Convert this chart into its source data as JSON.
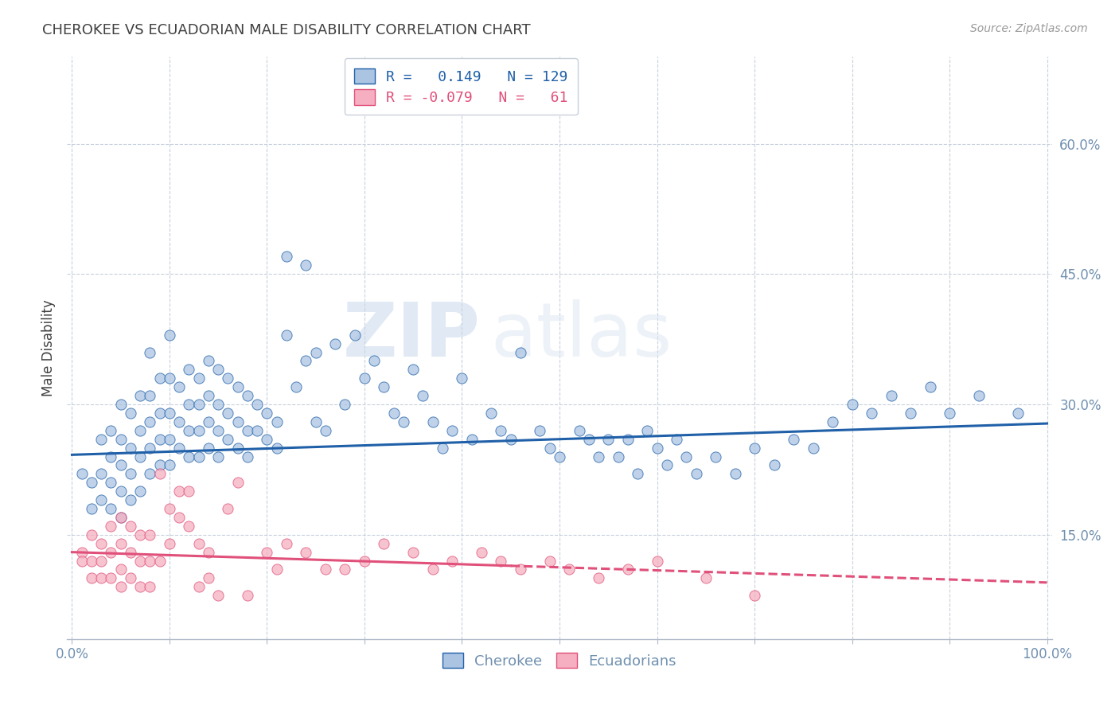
{
  "title": "CHEROKEE VS ECUADORIAN MALE DISABILITY CORRELATION CHART",
  "source": "Source: ZipAtlas.com",
  "ylabel": "Male Disability",
  "ytick_labels": [
    "15.0%",
    "30.0%",
    "45.0%",
    "60.0%"
  ],
  "ytick_values": [
    0.15,
    0.3,
    0.45,
    0.6
  ],
  "xtick_values": [
    0.0,
    0.1,
    0.2,
    0.3,
    0.4,
    0.5,
    0.6,
    0.7,
    0.8,
    0.9,
    1.0
  ],
  "xlim": [
    -0.005,
    1.005
  ],
  "ylim": [
    0.03,
    0.7
  ],
  "cherokee_R": 0.149,
  "cherokee_N": 129,
  "ecuadorian_R": -0.079,
  "ecuadorian_N": 61,
  "cherokee_color": "#aac4e2",
  "cherokee_line_color": "#2060a8",
  "ecuadorian_color": "#f5afc0",
  "ecuadorian_line_color": "#e0507a",
  "legend_label_cherokee": "Cherokee",
  "legend_label_ecuadorian": "Ecuadorians",
  "background_color": "#ffffff",
  "watermark_zip": "ZIP",
  "watermark_atlas": "atlas",
  "title_color": "#404040",
  "axis_color": "#7090b0",
  "cherokee_trend_x0": 0.0,
  "cherokee_trend_x1": 1.0,
  "cherokee_trend_y0": 0.242,
  "cherokee_trend_y1": 0.278,
  "ecuadorian_trend_x0": 0.0,
  "ecuadorian_trend_x1": 1.0,
  "ecuadorian_trend_y0": 0.13,
  "ecuadorian_trend_y1": 0.095,
  "cherokee_scatter_x": [
    0.01,
    0.02,
    0.02,
    0.03,
    0.03,
    0.03,
    0.04,
    0.04,
    0.04,
    0.04,
    0.05,
    0.05,
    0.05,
    0.05,
    0.05,
    0.06,
    0.06,
    0.06,
    0.06,
    0.07,
    0.07,
    0.07,
    0.07,
    0.08,
    0.08,
    0.08,
    0.08,
    0.08,
    0.09,
    0.09,
    0.09,
    0.09,
    0.1,
    0.1,
    0.1,
    0.1,
    0.1,
    0.11,
    0.11,
    0.11,
    0.12,
    0.12,
    0.12,
    0.12,
    0.13,
    0.13,
    0.13,
    0.13,
    0.14,
    0.14,
    0.14,
    0.14,
    0.15,
    0.15,
    0.15,
    0.15,
    0.16,
    0.16,
    0.16,
    0.17,
    0.17,
    0.17,
    0.18,
    0.18,
    0.18,
    0.19,
    0.19,
    0.2,
    0.2,
    0.21,
    0.21,
    0.22,
    0.22,
    0.23,
    0.24,
    0.24,
    0.25,
    0.25,
    0.26,
    0.27,
    0.28,
    0.29,
    0.3,
    0.31,
    0.32,
    0.33,
    0.34,
    0.35,
    0.36,
    0.37,
    0.38,
    0.39,
    0.4,
    0.41,
    0.43,
    0.44,
    0.45,
    0.46,
    0.48,
    0.49,
    0.5,
    0.52,
    0.53,
    0.54,
    0.55,
    0.56,
    0.57,
    0.58,
    0.59,
    0.6,
    0.61,
    0.62,
    0.63,
    0.64,
    0.66,
    0.68,
    0.7,
    0.72,
    0.74,
    0.76,
    0.78,
    0.8,
    0.82,
    0.84,
    0.86,
    0.88,
    0.9,
    0.93,
    0.97
  ],
  "cherokee_scatter_y": [
    0.22,
    0.21,
    0.18,
    0.26,
    0.22,
    0.19,
    0.27,
    0.24,
    0.21,
    0.18,
    0.3,
    0.26,
    0.23,
    0.2,
    0.17,
    0.29,
    0.25,
    0.22,
    0.19,
    0.31,
    0.27,
    0.24,
    0.2,
    0.36,
    0.31,
    0.28,
    0.25,
    0.22,
    0.33,
    0.29,
    0.26,
    0.23,
    0.38,
    0.33,
    0.29,
    0.26,
    0.23,
    0.32,
    0.28,
    0.25,
    0.34,
    0.3,
    0.27,
    0.24,
    0.33,
    0.3,
    0.27,
    0.24,
    0.35,
    0.31,
    0.28,
    0.25,
    0.34,
    0.3,
    0.27,
    0.24,
    0.33,
    0.29,
    0.26,
    0.32,
    0.28,
    0.25,
    0.31,
    0.27,
    0.24,
    0.3,
    0.27,
    0.29,
    0.26,
    0.28,
    0.25,
    0.47,
    0.38,
    0.32,
    0.46,
    0.35,
    0.36,
    0.28,
    0.27,
    0.37,
    0.3,
    0.38,
    0.33,
    0.35,
    0.32,
    0.29,
    0.28,
    0.34,
    0.31,
    0.28,
    0.25,
    0.27,
    0.33,
    0.26,
    0.29,
    0.27,
    0.26,
    0.36,
    0.27,
    0.25,
    0.24,
    0.27,
    0.26,
    0.24,
    0.26,
    0.24,
    0.26,
    0.22,
    0.27,
    0.25,
    0.23,
    0.26,
    0.24,
    0.22,
    0.24,
    0.22,
    0.25,
    0.23,
    0.26,
    0.25,
    0.28,
    0.3,
    0.29,
    0.31,
    0.29,
    0.32,
    0.29,
    0.31,
    0.29
  ],
  "ecuadorian_scatter_x": [
    0.01,
    0.01,
    0.02,
    0.02,
    0.02,
    0.03,
    0.03,
    0.03,
    0.04,
    0.04,
    0.04,
    0.05,
    0.05,
    0.05,
    0.05,
    0.06,
    0.06,
    0.06,
    0.07,
    0.07,
    0.07,
    0.08,
    0.08,
    0.08,
    0.09,
    0.09,
    0.1,
    0.1,
    0.11,
    0.11,
    0.12,
    0.12,
    0.13,
    0.13,
    0.14,
    0.14,
    0.15,
    0.16,
    0.17,
    0.18,
    0.2,
    0.21,
    0.22,
    0.24,
    0.26,
    0.28,
    0.3,
    0.32,
    0.35,
    0.37,
    0.39,
    0.42,
    0.44,
    0.46,
    0.49,
    0.51,
    0.54,
    0.57,
    0.6,
    0.65,
    0.7
  ],
  "ecuadorian_scatter_y": [
    0.13,
    0.12,
    0.15,
    0.12,
    0.1,
    0.14,
    0.12,
    0.1,
    0.16,
    0.13,
    0.1,
    0.17,
    0.14,
    0.11,
    0.09,
    0.16,
    0.13,
    0.1,
    0.15,
    0.12,
    0.09,
    0.15,
    0.12,
    0.09,
    0.22,
    0.12,
    0.18,
    0.14,
    0.2,
    0.17,
    0.2,
    0.16,
    0.14,
    0.09,
    0.13,
    0.1,
    0.08,
    0.18,
    0.21,
    0.08,
    0.13,
    0.11,
    0.14,
    0.13,
    0.11,
    0.11,
    0.12,
    0.14,
    0.13,
    0.11,
    0.12,
    0.13,
    0.12,
    0.11,
    0.12,
    0.11,
    0.1,
    0.11,
    0.12,
    0.1,
    0.08
  ]
}
